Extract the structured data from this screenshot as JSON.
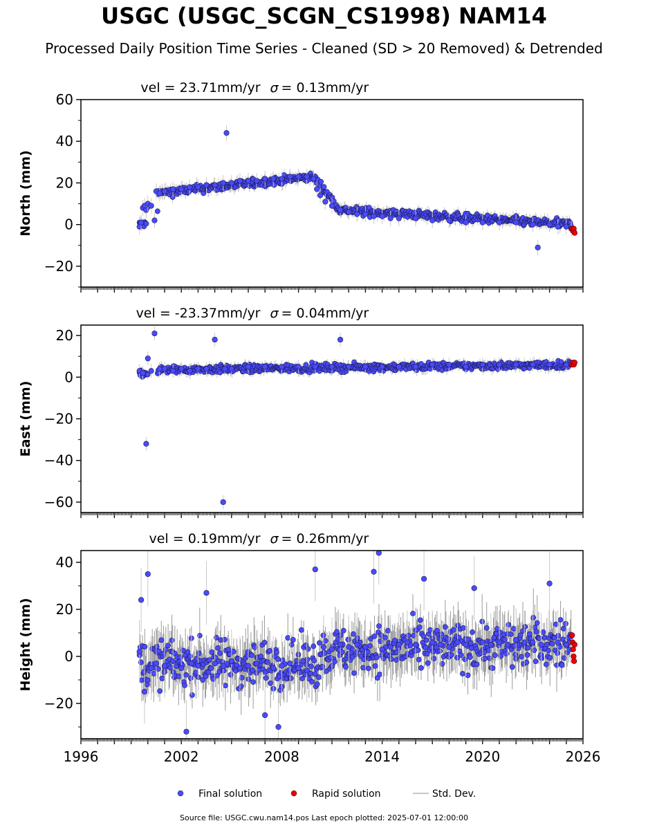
{
  "header": {
    "title": "USGC (USGC_SCGN_CS1998) NAM14",
    "subtitle": "Processed Daily Position Time Series - Cleaned (SD > 20 Removed) & Detrended"
  },
  "footer": {
    "source": "Source file: USGC.cwu.nam14.pos  Last epoch plotted: 2025-07-01 12:00:00"
  },
  "colors": {
    "final": "#4a4aff",
    "rapid": "#ee0000",
    "stddev": "#c8c8c8"
  },
  "legend": {
    "placement": "bottom-center",
    "items": [
      {
        "label": "Final solution",
        "color": "#4a4aff",
        "kind": "dot"
      },
      {
        "label": "Rapid solution",
        "color": "#ee0000",
        "kind": "dot"
      },
      {
        "label": "Std. Dev.",
        "color": "#c8c8c8",
        "kind": "line"
      }
    ]
  },
  "chart_data": [
    {
      "type": "scatter",
      "component": "north",
      "title": "vel = 23.71mm/yr",
      "sigma_label": "= 0.13mm/yr",
      "ylabel": "North (mm)",
      "xlim": [
        1996,
        2026
      ],
      "ylim": [
        -30,
        60
      ],
      "yticks": [
        -20,
        0,
        20,
        40,
        60
      ],
      "xticks": [
        1996,
        2002,
        2008,
        2014,
        2020,
        2026
      ],
      "series": [
        {
          "name": "Final solution",
          "x": [
            1999.5,
            1999.6,
            1999.7,
            1999.8,
            1999.9,
            2000.0,
            2000.2,
            2000.4,
            2000.5,
            2000.7,
            2001.0,
            2001.5,
            2002.0,
            2002.5,
            2003.0,
            2003.5,
            2004.0,
            2004.5,
            2004.7,
            2005.0,
            2005.5,
            2006.0,
            2006.5,
            2007.0,
            2007.5,
            2008.0,
            2008.5,
            2009.0,
            2009.5,
            2009.9,
            2010.1,
            2010.3,
            2010.6,
            2011.0,
            2011.5,
            2012.0,
            2012.5,
            2013.0,
            2013.5,
            2014.0,
            2014.5,
            2015.0,
            2016.0,
            2017.0,
            2018.0,
            2019.0,
            2020.0,
            2021.0,
            2022.0,
            2023.0,
            2023.3,
            2024.0,
            2024.5,
            2025.0,
            2025.3
          ],
          "y": [
            -1,
            1,
            8,
            9,
            7,
            10,
            9,
            2,
            16,
            15,
            16,
            17,
            17,
            18,
            18,
            19,
            19,
            20,
            44,
            20,
            21,
            21,
            21,
            22,
            22,
            22,
            23,
            23,
            23,
            22,
            17,
            14,
            11,
            9,
            7,
            6,
            5,
            5,
            4,
            4,
            3,
            3,
            3,
            2,
            2,
            1,
            1,
            1,
            1,
            0,
            -11,
            0,
            -1,
            -1,
            -2
          ]
        },
        {
          "name": "Rapid solution",
          "x": [
            2025.35,
            2025.4,
            2025.45,
            2025.5
          ],
          "y": [
            -2,
            -3,
            -2,
            -4
          ]
        }
      ]
    },
    {
      "type": "scatter",
      "component": "east",
      "title": "vel = -23.37mm/yr",
      "sigma_label": "= 0.04mm/yr",
      "ylabel": "East (mm)",
      "xlim": [
        1996,
        2026
      ],
      "ylim": [
        -65,
        25
      ],
      "yticks": [
        -60,
        -40,
        -20,
        0,
        20
      ],
      "xticks": [
        1996,
        2002,
        2008,
        2014,
        2020,
        2026
      ],
      "series": [
        {
          "name": "Final solution",
          "x": [
            1999.5,
            1999.7,
            1999.9,
            2000.0,
            2000.2,
            2000.4,
            2000.7,
            2001.0,
            2001.5,
            2002.0,
            2002.5,
            2003.0,
            2003.5,
            2004.0,
            2004.5,
            2004.6,
            2005.0,
            2006.0,
            2007.0,
            2008.0,
            2009.0,
            2010.0,
            2011.0,
            2011.5,
            2012.0,
            2013.0,
            2014.0,
            2015.0,
            2016.0,
            2017.0,
            2018.0,
            2019.0,
            2020.0,
            2021.0,
            2022.0,
            2023.0,
            2024.0,
            2025.0
          ],
          "y": [
            3,
            2,
            -32,
            9,
            3,
            21,
            4,
            4,
            3,
            4,
            3,
            4,
            4,
            18,
            -60,
            4,
            4,
            5,
            5,
            5,
            5,
            5,
            5,
            18,
            5,
            5,
            5,
            5,
            5,
            6,
            6,
            5,
            6,
            6,
            6,
            6,
            6,
            6
          ]
        },
        {
          "name": "Rapid solution",
          "x": [
            2025.35,
            2025.4,
            2025.45,
            2025.5
          ],
          "y": [
            6,
            7,
            6,
            7
          ]
        }
      ]
    },
    {
      "type": "scatter",
      "component": "height",
      "title": "vel = 0.19mm/yr",
      "sigma_label": "= 0.26mm/yr",
      "ylabel": "Height (mm)",
      "xlim": [
        1996,
        2026
      ],
      "ylim": [
        -35,
        45
      ],
      "yticks": [
        -20,
        0,
        20,
        40
      ],
      "xticks": [
        1996,
        2002,
        2008,
        2014,
        2020,
        2026
      ],
      "series": [
        {
          "name": "Final solution",
          "x": [
            1999.5,
            1999.6,
            1999.8,
            2000.0,
            2000.2,
            2000.5,
            2001.0,
            2001.5,
            2002.0,
            2002.3,
            2002.6,
            2003.0,
            2003.5,
            2004.0,
            2004.5,
            2005.0,
            2005.5,
            2006.0,
            2006.5,
            2007.0,
            2007.5,
            2007.8,
            2008.0,
            2008.5,
            2009.0,
            2009.5,
            2010.0,
            2010.5,
            2011.0,
            2011.5,
            2012.0,
            2012.5,
            2013.0,
            2013.5,
            2013.8,
            2014.0,
            2014.5,
            2015.0,
            2015.5,
            2016.0,
            2016.5,
            2017.0,
            2017.5,
            2018.0,
            2018.5,
            2019.0,
            2019.5,
            2020.0,
            2020.5,
            2021.0,
            2021.5,
            2022.0,
            2022.5,
            2023.0,
            2023.5,
            2024.0,
            2024.5,
            2025.0
          ],
          "y": [
            2,
            24,
            -15,
            35,
            -5,
            -3,
            -4,
            -2,
            -5,
            -32,
            -3,
            -4,
            27,
            -3,
            -4,
            -2,
            -5,
            -4,
            -3,
            -25,
            -5,
            -30,
            -4,
            -3,
            -5,
            -6,
            37,
            4,
            3,
            5,
            4,
            5,
            4,
            36,
            44,
            3,
            4,
            5,
            6,
            5,
            33,
            6,
            5,
            4,
            6,
            5,
            29,
            6,
            5,
            6,
            5,
            7,
            6,
            6,
            5,
            31,
            6,
            5
          ]
        },
        {
          "name": "Rapid solution",
          "x": [
            2025.35,
            2025.38,
            2025.41,
            2025.44,
            2025.47,
            2025.5
          ],
          "y": [
            9,
            6,
            3,
            0,
            -2,
            5
          ]
        }
      ]
    }
  ]
}
